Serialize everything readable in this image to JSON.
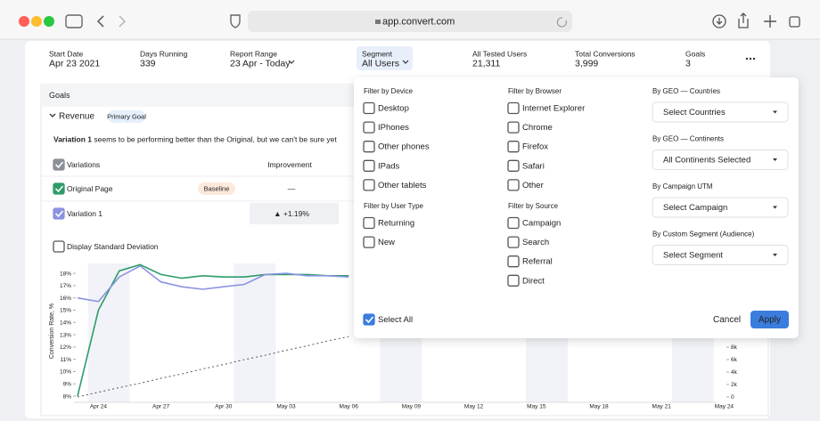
{
  "browser": {
    "url": "app.convert.com"
  },
  "summary": [
    {
      "label": "Start Date",
      "value": "Apr 23 2021"
    },
    {
      "label": "Days Running",
      "value": "339"
    },
    {
      "label": "Report Range",
      "value": "23 Apr - Today"
    },
    {
      "label": "Segment",
      "value": "All Users"
    },
    {
      "label": "All Tested Users",
      "value": "21,311"
    },
    {
      "label": "Total Conversions",
      "value": "3,999"
    },
    {
      "label": "Goals",
      "value": "3"
    }
  ],
  "goals": {
    "title": "Goals",
    "goal_name": "Revenue",
    "goal_badge": "Primary Goal",
    "message_strong": "Variation 1",
    "message": " seems to be performing better than the Original, but we can't be sure yet",
    "headers": [
      "Variations",
      "Improvement"
    ],
    "rows": [
      {
        "name": "Original Page",
        "badge": "Baseline",
        "improvement": "—"
      },
      {
        "name": "Variation 1",
        "improvement": "▲ +1.19%"
      }
    ],
    "std_dev": "Display Standard Deviation"
  },
  "chart": {
    "type": "line",
    "y_label": "Conversion Rate, %",
    "categories": [
      null,
      "Apr 24",
      null,
      null,
      "Apr 27",
      null,
      null,
      "Apr 30",
      null,
      null,
      "May 03",
      null,
      null,
      "May 06",
      null,
      null,
      "May 09",
      null,
      null,
      "May 12",
      null,
      null,
      "May 15",
      null,
      null,
      "May 18",
      null,
      null,
      "May 21",
      null,
      null,
      "May 24"
    ],
    "series": [
      {
        "color": "#2e9b6a",
        "values": [
          8.0,
          15.0,
          18.2,
          18.7,
          17.9,
          17.6,
          17.8,
          17.7,
          17.7,
          17.9,
          17.9,
          17.9,
          17.8,
          17.8,
          null,
          null,
          null,
          null,
          null,
          null,
          null,
          null,
          null,
          null,
          null,
          null,
          null,
          null,
          null,
          null,
          null,
          null
        ]
      },
      {
        "color": "#8b93e0",
        "values": [
          16.0,
          15.7,
          17.7,
          18.6,
          17.3,
          16.9,
          16.7,
          16.9,
          17.1,
          17.9,
          18.0,
          17.8,
          17.8,
          17.7,
          null,
          null,
          null,
          null,
          null,
          null,
          null,
          null,
          null,
          null,
          null,
          null,
          null,
          null,
          null,
          null,
          null,
          null
        ]
      },
      {
        "color": "#555555",
        "axis": "y2",
        "dashed": true,
        "values": [
          0,
          750,
          1500,
          2200,
          3000,
          3700,
          4500,
          5200,
          6000,
          6700,
          7500,
          8200,
          9000,
          9700,
          null,
          null,
          null,
          null,
          null,
          null,
          null,
          null,
          null,
          null,
          null,
          null,
          null,
          null,
          null,
          null,
          null,
          null
        ]
      }
    ],
    "ylim": [
      7.5,
      18.8
    ],
    "yticks": [
      {
        "value": 8,
        "label": "8%"
      },
      {
        "value": 9,
        "label": "9%"
      },
      {
        "value": 10,
        "label": "10%"
      },
      {
        "value": 11,
        "label": "11%"
      },
      {
        "value": 12,
        "label": "12%"
      },
      {
        "value": 13,
        "label": "13%"
      },
      {
        "value": 14,
        "label": "14%"
      },
      {
        "value": 15,
        "label": "15%"
      },
      {
        "value": 16,
        "label": "16%"
      },
      {
        "value": 17,
        "label": "17%"
      },
      {
        "value": 18,
        "label": "18%"
      }
    ],
    "y2lim": [
      -860,
      21430
    ],
    "y2ticks": [
      0,
      {
        "value": 2000,
        "label": "2k"
      },
      {
        "value": 4000,
        "label": "4k"
      },
      {
        "value": 6000,
        "label": "6k"
      },
      {
        "value": 8000,
        "label": "8k"
      }
    ]
  },
  "segment_dropdown": {
    "groups": [
      {
        "title": "Filter by Device",
        "options": [
          "Desktop",
          "IPhones",
          "Other phones",
          "IPads",
          "Other tablets"
        ]
      },
      {
        "title": "Filter by Browser",
        "options": [
          "Internet Explorer",
          "Chrome",
          "Firefox",
          "Safari",
          "Other"
        ]
      },
      {
        "title": "Filter by User Type",
        "options": [
          "Returning",
          "New"
        ]
      },
      {
        "title": "Filter by Source",
        "options": [
          "Campaign",
          "Search",
          "Referral",
          "Direct"
        ]
      }
    ],
    "selects": [
      {
        "label": "By GEO — Countries",
        "value": "Select Countries"
      },
      {
        "label": "By GEO — Continents",
        "value": "All Continents Selected"
      },
      {
        "label": "By Campaign UTM",
        "value": "Select Campaign"
      },
      {
        "label": "By Custom Segment (Audience)",
        "value": "Select Segment"
      }
    ],
    "select_all": "Select All",
    "cancel": "Cancel",
    "apply": "Apply"
  }
}
